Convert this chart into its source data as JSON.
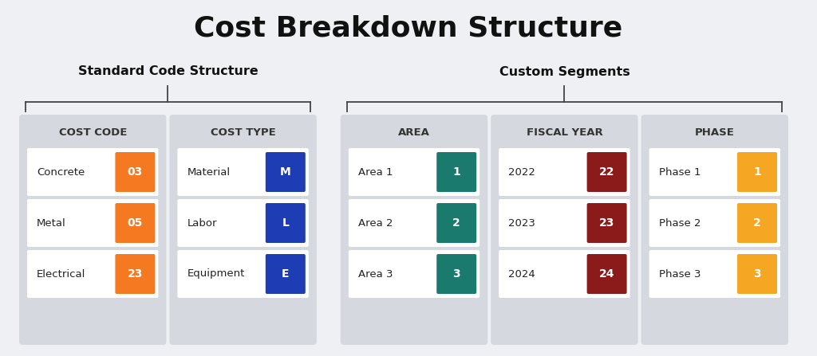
{
  "title": "Cost Breakdown Structure",
  "title_fontsize": 26,
  "bg_color": "#eef0f3",
  "card_bg": "#d5d8de",
  "row_bg": "#ffffff",
  "section_label_standard": "Standard Code Structure",
  "section_label_custom": "Custom Segments",
  "columns": [
    {
      "header": "COST CODE",
      "rows": [
        {
          "label": "Concrete",
          "badge": "03",
          "badge_color": "#f47920"
        },
        {
          "label": "Metal",
          "badge": "05",
          "badge_color": "#f47920"
        },
        {
          "label": "Electrical",
          "badge": "23",
          "badge_color": "#f47920"
        }
      ]
    },
    {
      "header": "COST TYPE",
      "rows": [
        {
          "label": "Material",
          "badge": "M",
          "badge_color": "#1e3db5"
        },
        {
          "label": "Labor",
          "badge": "L",
          "badge_color": "#1e3db5"
        },
        {
          "label": "Equipment",
          "badge": "E",
          "badge_color": "#1e3db5"
        }
      ]
    },
    {
      "header": "AREA",
      "rows": [
        {
          "label": "Area 1",
          "badge": "1",
          "badge_color": "#1a7a6e"
        },
        {
          "label": "Area 2",
          "badge": "2",
          "badge_color": "#1a7a6e"
        },
        {
          "label": "Area 3",
          "badge": "3",
          "badge_color": "#1a7a6e"
        }
      ]
    },
    {
      "header": "FISCAL YEAR",
      "rows": [
        {
          "label": "2022",
          "badge": "22",
          "badge_color": "#8b1a1a"
        },
        {
          "label": "2023",
          "badge": "23",
          "badge_color": "#8b1a1a"
        },
        {
          "label": "2024",
          "badge": "24",
          "badge_color": "#8b1a1a"
        }
      ]
    },
    {
      "header": "PHASE",
      "rows": [
        {
          "label": "Phase 1",
          "badge": "1",
          "badge_color": "#f5a623"
        },
        {
          "label": "Phase 2",
          "badge": "2",
          "badge_color": "#f5a623"
        },
        {
          "label": "Phase 3",
          "badge": "3",
          "badge_color": "#f5a623"
        }
      ]
    }
  ],
  "standard_cols": [
    0,
    1
  ],
  "custom_cols": [
    2,
    3,
    4
  ],
  "bracket_color": "#444444",
  "header_fontsize": 9.5,
  "label_fontsize": 9.5,
  "badge_fontsize": 10,
  "section_fontsize": 11.5
}
